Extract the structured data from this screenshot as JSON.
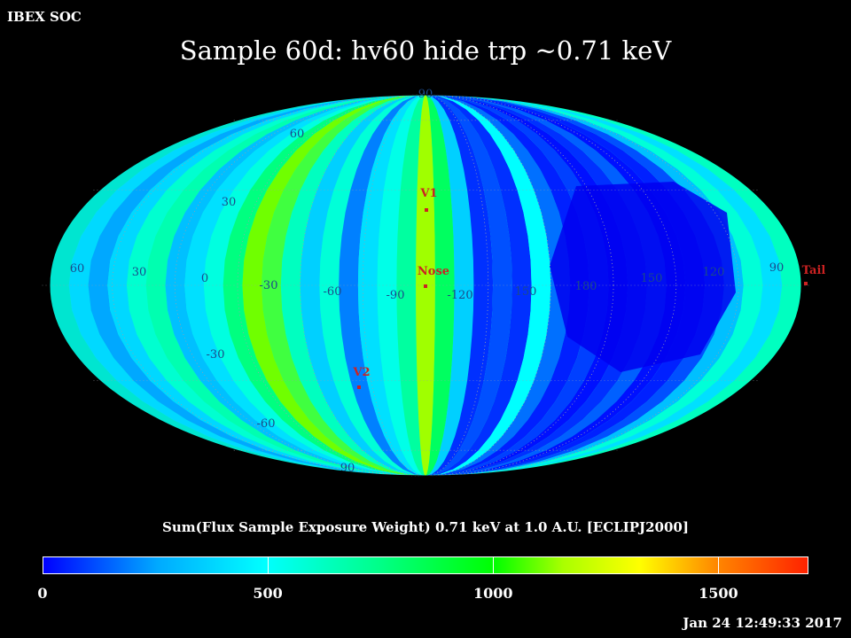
{
  "header": {
    "org": "IBEX SOC",
    "title": "Sample 60d: hv60 hide trp ~0.71 keV"
  },
  "map": {
    "projection": "Aitoff/Hammer all-sky (ecliptic)",
    "grid_labels": {
      "latitude": [
        "90",
        "60",
        "30",
        "-30",
        "-60",
        "90"
      ],
      "longitude": [
        "60",
        "30",
        "0",
        "-30",
        "-60",
        "-90",
        "-120",
        "150",
        "180",
        "150",
        "120",
        "90"
      ]
    },
    "markers": [
      {
        "label": "V1",
        "color": "#cc2222"
      },
      {
        "label": "Nose",
        "color": "#cc2222"
      },
      {
        "label": "V2",
        "color": "#cc2222"
      },
      {
        "label": "Tail",
        "color": "#cc2222"
      }
    ],
    "colors": {
      "min": "#0000ff",
      "mid": "#00ff00",
      "max": "#ff2200",
      "grid": "#9aa0aa",
      "marker": "#cc2222"
    }
  },
  "colorbar": {
    "title": "Sum(Flux Sample Exposure Weight)  0.71 keV at 1.0 A.U. [ECLIPJ2000]",
    "min": 0,
    "max": 1700,
    "ticks": [
      "0",
      "500",
      "1000",
      "1500"
    ],
    "tick_values": [
      0,
      500,
      1000,
      1500
    ]
  },
  "footer": {
    "timestamp": "Jan 24 12:49:33 2017"
  }
}
